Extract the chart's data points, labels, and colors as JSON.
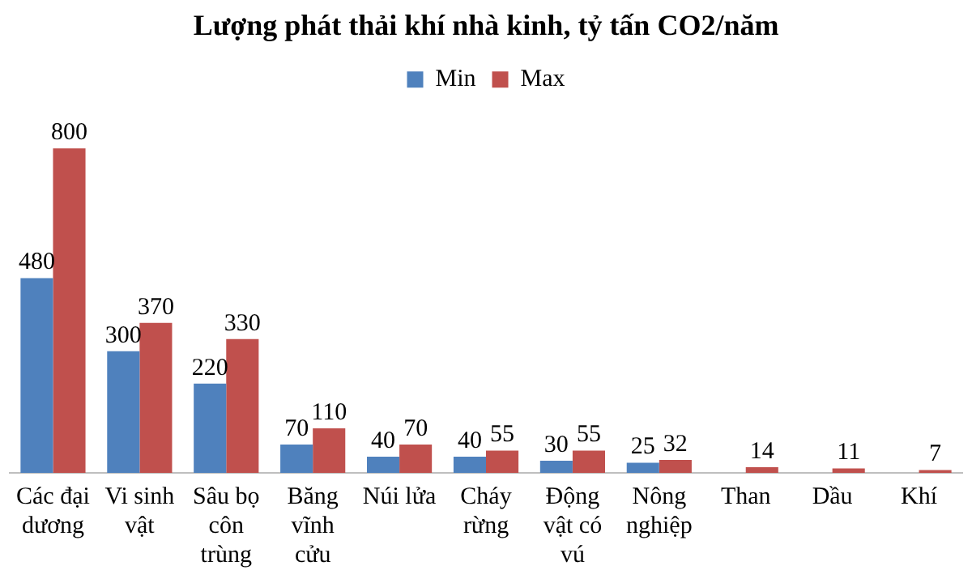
{
  "chart_data": {
    "type": "bar",
    "title": "Lượng phát thải khí nhà kinh, tỷ tấn CO2/năm",
    "categories": [
      "Các đại dương",
      "Vi sinh vật",
      "Sâu bọ côn trùng",
      "Băng vĩnh cửu",
      "Núi lửa",
      "Cháy rừng",
      "Động vật có vú",
      "Nông nghiệp",
      "Than",
      "Dầu",
      "Khí"
    ],
    "series": [
      {
        "name": "Min",
        "color": "#4f81bd",
        "values": [
          480,
          300,
          220,
          70,
          40,
          40,
          30,
          25,
          null,
          null,
          null
        ]
      },
      {
        "name": "Max",
        "color": "#c0504d",
        "values": [
          800,
          370,
          330,
          110,
          70,
          55,
          55,
          32,
          14,
          11,
          7
        ]
      }
    ],
    "data_labels": true,
    "legend": "top",
    "grid": false
  }
}
